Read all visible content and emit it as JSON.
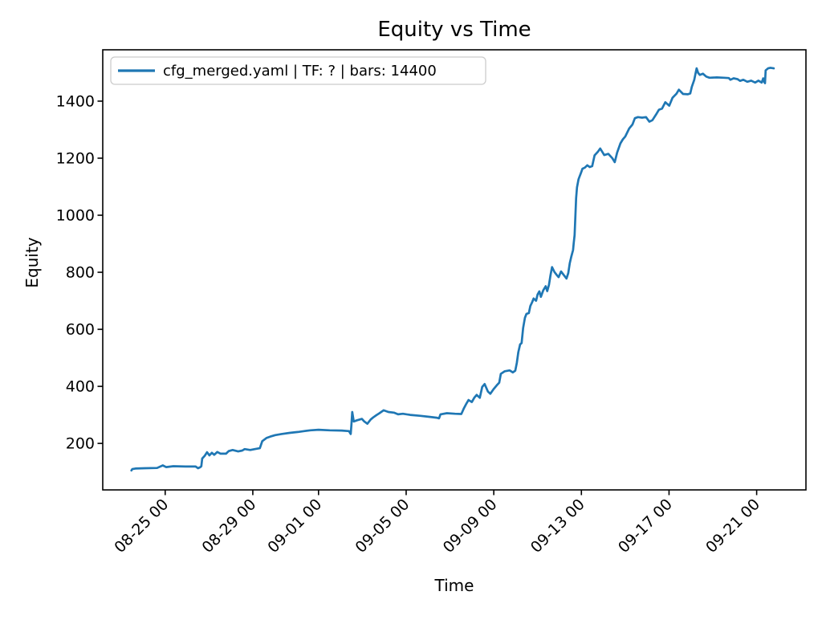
{
  "figure": {
    "title": "Equity vs Time"
  },
  "chart_data": {
    "type": "line",
    "title": "Equity vs Time",
    "xlabel": "Time",
    "ylabel": "Equity",
    "grid": false,
    "line_color": "#1f77b4",
    "legend": {
      "position": "upper left",
      "entries": [
        {
          "label": "cfg_merged.yaml | TF: ? | bars: 14400",
          "color": "#1f77b4"
        }
      ]
    },
    "x_axis": {
      "unit": "days offset along time axis (0 = first labeled day minus 2)",
      "lim": [
        -0.85,
        31.25
      ],
      "tick_rotation": 45,
      "ticks": [
        {
          "t": 2,
          "label": "08-25 00"
        },
        {
          "t": 6,
          "label": "08-29 00"
        },
        {
          "t": 9,
          "label": "09-01 00"
        },
        {
          "t": 13,
          "label": "09-05 00"
        },
        {
          "t": 17,
          "label": "09-09 00"
        },
        {
          "t": 21,
          "label": "09-13 00"
        },
        {
          "t": 25,
          "label": "09-17 00"
        },
        {
          "t": 29,
          "label": "09-21 00"
        }
      ]
    },
    "y_axis": {
      "lim": [
        37,
        1580
      ],
      "ticks": [
        200,
        400,
        600,
        800,
        1000,
        1200,
        1400
      ]
    },
    "series": [
      {
        "name": "cfg_merged.yaml | TF: ? | bars: 14400",
        "color": "#1f77b4",
        "points": [
          [
            0.46,
            105
          ],
          [
            0.5,
            110
          ],
          [
            0.64,
            112
          ],
          [
            1.08,
            113
          ],
          [
            1.63,
            114
          ],
          [
            1.89,
            123
          ],
          [
            2.04,
            117
          ],
          [
            2.37,
            120
          ],
          [
            2.92,
            119
          ],
          [
            3.39,
            119
          ],
          [
            3.5,
            113
          ],
          [
            3.61,
            117
          ],
          [
            3.65,
            120
          ],
          [
            3.69,
            147
          ],
          [
            3.8,
            156
          ],
          [
            3.91,
            169
          ],
          [
            4.02,
            158
          ],
          [
            4.13,
            167
          ],
          [
            4.24,
            160
          ],
          [
            4.38,
            170
          ],
          [
            4.53,
            164
          ],
          [
            4.78,
            164
          ],
          [
            4.9,
            173
          ],
          [
            5.08,
            177
          ],
          [
            5.33,
            172
          ],
          [
            5.52,
            175
          ],
          [
            5.63,
            180
          ],
          [
            5.88,
            177
          ],
          [
            6.14,
            181
          ],
          [
            6.32,
            183
          ],
          [
            6.43,
            208
          ],
          [
            6.62,
            219
          ],
          [
            6.8,
            224
          ],
          [
            7.02,
            229
          ],
          [
            7.31,
            233
          ],
          [
            7.68,
            237
          ],
          [
            8.05,
            240
          ],
          [
            8.34,
            243
          ],
          [
            8.63,
            246
          ],
          [
            9.0,
            248
          ],
          [
            9.51,
            246
          ],
          [
            10.06,
            245
          ],
          [
            10.39,
            243
          ],
          [
            10.47,
            233
          ],
          [
            10.5,
            262
          ],
          [
            10.54,
            310
          ],
          [
            10.61,
            277
          ],
          [
            10.76,
            281
          ],
          [
            10.98,
            286
          ],
          [
            11.09,
            277
          ],
          [
            11.23,
            269
          ],
          [
            11.38,
            284
          ],
          [
            11.49,
            291
          ],
          [
            11.64,
            299
          ],
          [
            11.78,
            306
          ],
          [
            11.97,
            316
          ],
          [
            12.19,
            310
          ],
          [
            12.44,
            308
          ],
          [
            12.63,
            302
          ],
          [
            12.85,
            304
          ],
          [
            13.18,
            300
          ],
          [
            13.62,
            297
          ],
          [
            14.09,
            293
          ],
          [
            14.39,
            290
          ],
          [
            14.5,
            288
          ],
          [
            14.57,
            302
          ],
          [
            14.86,
            306
          ],
          [
            15.23,
            304
          ],
          [
            15.52,
            303
          ],
          [
            15.63,
            322
          ],
          [
            15.74,
            338
          ],
          [
            15.85,
            352
          ],
          [
            16.0,
            345
          ],
          [
            16.11,
            360
          ],
          [
            16.22,
            370
          ],
          [
            16.36,
            360
          ],
          [
            16.47,
            398
          ],
          [
            16.58,
            408
          ],
          [
            16.73,
            382
          ],
          [
            16.84,
            374
          ],
          [
            16.99,
            390
          ],
          [
            17.14,
            404
          ],
          [
            17.25,
            413
          ],
          [
            17.32,
            444
          ],
          [
            17.5,
            453
          ],
          [
            17.72,
            456
          ],
          [
            17.87,
            449
          ],
          [
            17.98,
            455
          ],
          [
            18.05,
            482
          ],
          [
            18.12,
            520
          ],
          [
            18.2,
            547
          ],
          [
            18.27,
            552
          ],
          [
            18.34,
            605
          ],
          [
            18.42,
            640
          ],
          [
            18.49,
            654
          ],
          [
            18.6,
            657
          ],
          [
            18.67,
            682
          ],
          [
            18.75,
            695
          ],
          [
            18.82,
            708
          ],
          [
            18.93,
            700
          ],
          [
            19.0,
            722
          ],
          [
            19.08,
            733
          ],
          [
            19.15,
            714
          ],
          [
            19.26,
            737
          ],
          [
            19.37,
            751
          ],
          [
            19.44,
            734
          ],
          [
            19.52,
            756
          ],
          [
            19.59,
            790
          ],
          [
            19.66,
            818
          ],
          [
            19.77,
            801
          ],
          [
            19.88,
            790
          ],
          [
            19.96,
            783
          ],
          [
            20.07,
            803
          ],
          [
            20.21,
            789
          ],
          [
            20.32,
            778
          ],
          [
            20.4,
            797
          ],
          [
            20.47,
            832
          ],
          [
            20.54,
            855
          ],
          [
            20.62,
            878
          ],
          [
            20.65,
            902
          ],
          [
            20.69,
            930
          ],
          [
            20.73,
            1005
          ],
          [
            20.76,
            1060
          ],
          [
            20.8,
            1098
          ],
          [
            20.87,
            1126
          ],
          [
            20.98,
            1148
          ],
          [
            21.05,
            1163
          ],
          [
            21.16,
            1167
          ],
          [
            21.27,
            1175
          ],
          [
            21.38,
            1169
          ],
          [
            21.49,
            1172
          ],
          [
            21.6,
            1210
          ],
          [
            21.75,
            1222
          ],
          [
            21.86,
            1234
          ],
          [
            21.97,
            1220
          ],
          [
            22.04,
            1211
          ],
          [
            22.23,
            1215
          ],
          [
            22.41,
            1200
          ],
          [
            22.52,
            1186
          ],
          [
            22.63,
            1220
          ],
          [
            22.78,
            1252
          ],
          [
            22.89,
            1266
          ],
          [
            23.0,
            1276
          ],
          [
            23.18,
            1304
          ],
          [
            23.33,
            1318
          ],
          [
            23.44,
            1340
          ],
          [
            23.58,
            1344
          ],
          [
            23.77,
            1342
          ],
          [
            23.95,
            1344
          ],
          [
            24.1,
            1328
          ],
          [
            24.24,
            1333
          ],
          [
            24.43,
            1356
          ],
          [
            24.54,
            1370
          ],
          [
            24.68,
            1374
          ],
          [
            24.83,
            1396
          ],
          [
            25.01,
            1384
          ],
          [
            25.16,
            1412
          ],
          [
            25.34,
            1426
          ],
          [
            25.45,
            1440
          ],
          [
            25.64,
            1425
          ],
          [
            25.86,
            1424
          ],
          [
            25.97,
            1427
          ],
          [
            26.04,
            1450
          ],
          [
            26.15,
            1474
          ],
          [
            26.22,
            1500
          ],
          [
            26.26,
            1515
          ],
          [
            26.33,
            1499
          ],
          [
            26.41,
            1492
          ],
          [
            26.55,
            1496
          ],
          [
            26.7,
            1486
          ],
          [
            26.85,
            1482
          ],
          [
            27.18,
            1483
          ],
          [
            27.51,
            1482
          ],
          [
            27.73,
            1481
          ],
          [
            27.8,
            1475
          ],
          [
            27.95,
            1480
          ],
          [
            28.13,
            1477
          ],
          [
            28.24,
            1471
          ],
          [
            28.39,
            1475
          ],
          [
            28.57,
            1468
          ],
          [
            28.75,
            1472
          ],
          [
            28.93,
            1465
          ],
          [
            29.08,
            1472
          ],
          [
            29.23,
            1465
          ],
          [
            29.3,
            1480
          ],
          [
            29.34,
            1468
          ],
          [
            29.38,
            1463
          ],
          [
            29.41,
            1508
          ],
          [
            29.52,
            1515
          ],
          [
            29.63,
            1517
          ],
          [
            29.78,
            1515
          ]
        ]
      }
    ]
  }
}
